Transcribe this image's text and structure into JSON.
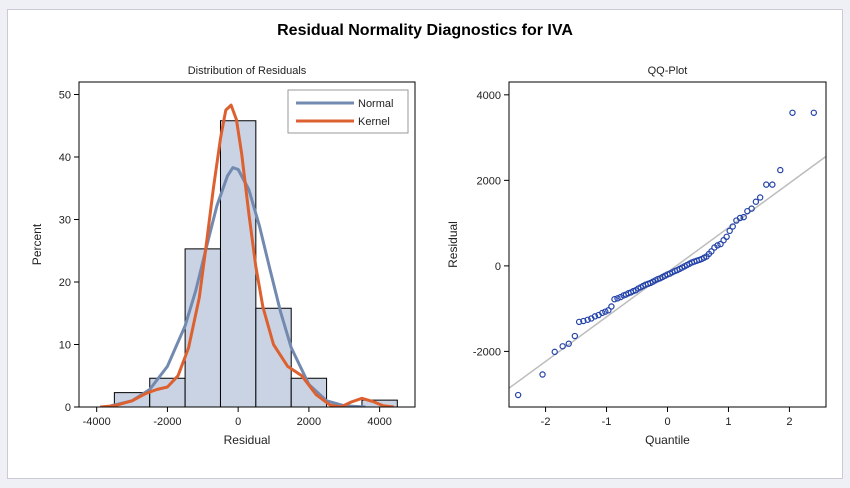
{
  "title": "Residual Normality Diagnostics for IVA",
  "chart_data": [
    {
      "type": "bar",
      "title": "Distribution of Residuals",
      "xlabel": "Residual",
      "ylabel": "Percent",
      "xlim": [
        -4500,
        5000
      ],
      "ylim": [
        0,
        52
      ],
      "xticks": [
        -4000,
        -2000,
        0,
        2000,
        4000
      ],
      "xtick_labels": [
        "-4000",
        "-2000",
        "0",
        "2000",
        "4000"
      ],
      "yticks": [
        0,
        10,
        20,
        30,
        40,
        50
      ],
      "ytick_labels": [
        "0",
        "10",
        "20",
        "30",
        "40",
        "50"
      ],
      "bin_edges": [
        -3500,
        -2500,
        -1500,
        -500,
        500,
        1500,
        2500,
        3500,
        4500
      ],
      "values": [
        2.3,
        4.6,
        25.3,
        45.8,
        15.8,
        4.6,
        0,
        1.1
      ],
      "bar_color": "#cad3e3",
      "legend": {
        "position": "top-right",
        "entries": [
          {
            "name": "Normal",
            "color": "#7289b0"
          },
          {
            "name": "Kernel",
            "color": "#dd6130"
          }
        ]
      },
      "series": [
        {
          "name": "Normal",
          "color": "#7289b0",
          "x": [
            -3600,
            -3000,
            -2500,
            -2000,
            -1500,
            -1200,
            -900,
            -600,
            -300,
            -150,
            0,
            300,
            600,
            900,
            1200,
            1500,
            2000,
            2500,
            3000,
            3600
          ],
          "values": [
            0.2,
            1.0,
            2.8,
            6.5,
            13.0,
            18.6,
            25.5,
            32.2,
            37.0,
            38.3,
            38.0,
            34.8,
            29.0,
            22.0,
            15.2,
            9.5,
            3.6,
            1.0,
            0.2,
            0.0
          ]
        },
        {
          "name": "Kernel",
          "color": "#dd6130",
          "x": [
            -3900,
            -3500,
            -3000,
            -2600,
            -2300,
            -2000,
            -1700,
            -1400,
            -1100,
            -900,
            -700,
            -500,
            -350,
            -200,
            -50,
            100,
            300,
            500,
            700,
            1000,
            1400,
            1800,
            2200,
            2600,
            2900,
            3200,
            3500,
            3800,
            4100,
            4400
          ],
          "values": [
            0.0,
            0.2,
            1.0,
            2.2,
            2.8,
            3.2,
            5.0,
            9.5,
            17.5,
            26.0,
            35.0,
            43.0,
            47.5,
            48.3,
            46.0,
            40.5,
            31.0,
            22.5,
            16.0,
            10.0,
            6.5,
            5.0,
            2.0,
            0.3,
            0.0,
            0.8,
            1.4,
            0.9,
            0.2,
            0.0
          ]
        }
      ]
    },
    {
      "type": "scatter",
      "title": "QQ-Plot",
      "xlabel": "Quantile",
      "ylabel": "Residual",
      "xlim": [
        -2.6,
        2.6
      ],
      "ylim": [
        -3300,
        4300
      ],
      "xticks": [
        -2,
        -1,
        0,
        1,
        2
      ],
      "xtick_labels": [
        "-2",
        "-1",
        "0",
        "1",
        "2"
      ],
      "yticks": [
        -2000,
        0,
        2000,
        4000
      ],
      "ytick_labels": [
        "-2000",
        "0",
        "2000",
        "4000"
      ],
      "point_color": "#2342a8",
      "line_color": "#bdbdbd",
      "reference_line": {
        "x": [
          -2.6,
          2.6
        ],
        "y": [
          -2860,
          2560
        ]
      },
      "x": [
        -2.45,
        -2.05,
        -1.85,
        -1.72,
        -1.62,
        -1.52,
        -1.45,
        -1.38,
        -1.31,
        -1.25,
        -1.19,
        -1.13,
        -1.07,
        -1.02,
        -0.97,
        -0.92,
        -0.87,
        -0.82,
        -0.77,
        -0.72,
        -0.68,
        -0.64,
        -0.6,
        -0.56,
        -0.52,
        -0.48,
        -0.44,
        -0.4,
        -0.36,
        -0.32,
        -0.28,
        -0.24,
        -0.2,
        -0.16,
        -0.12,
        -0.08,
        -0.04,
        0.0,
        0.04,
        0.08,
        0.12,
        0.16,
        0.2,
        0.24,
        0.28,
        0.32,
        0.36,
        0.4,
        0.44,
        0.48,
        0.52,
        0.56,
        0.6,
        0.64,
        0.68,
        0.72,
        0.77,
        0.82,
        0.87,
        0.92,
        0.97,
        1.02,
        1.07,
        1.13,
        1.19,
        1.25,
        1.31,
        1.38,
        1.45,
        1.52,
        1.62,
        1.72,
        1.85,
        2.05,
        2.4
      ],
      "values": [
        -3020,
        -2540,
        -2010,
        -1880,
        -1820,
        -1640,
        -1310,
        -1290,
        -1260,
        -1230,
        -1180,
        -1150,
        -1100,
        -1070,
        -1040,
        -950,
        -780,
        -760,
        -730,
        -690,
        -670,
        -640,
        -620,
        -590,
        -570,
        -530,
        -500,
        -470,
        -440,
        -420,
        -400,
        -370,
        -340,
        -310,
        -290,
        -260,
        -230,
        -200,
        -180,
        -150,
        -120,
        -100,
        -70,
        -40,
        -10,
        20,
        50,
        80,
        100,
        120,
        140,
        160,
        190,
        220,
        280,
        340,
        430,
        480,
        510,
        600,
        680,
        820,
        920,
        1060,
        1120,
        1140,
        1280,
        1340,
        1500,
        1600,
        1900,
        1900,
        2240,
        3580,
        3580
      ]
    }
  ]
}
